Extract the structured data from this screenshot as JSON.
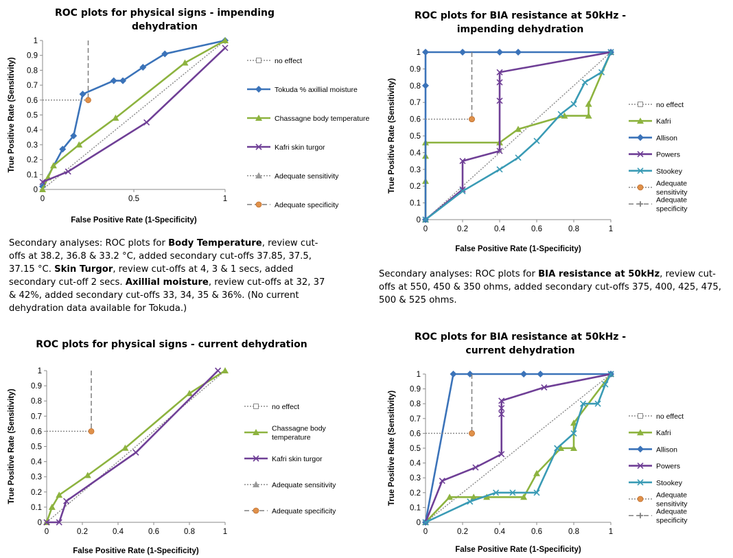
{
  "notes": {
    "physical": {
      "prefix": "Secondary analyses: ROC plots for ",
      "bold1": "Body Temperature",
      "text1": ", review cut-offs at 38.2, 36.8 & 33.2 °C, added secondary cut-offs 37.85, 37.5, 37.15 °C. ",
      "bold2": "Skin Turgor",
      "text2": ", review cut-offs at 4, 3 & 1 secs, added secondary cut-off 2 secs. ",
      "bold3": "Axillial moisture",
      "text3": ", review cut-offs at 32, 37 & 42%, added secondary cut-offs 33, 34, 35 & 36%. (No current dehydration data available for Tokuda.)"
    },
    "bia": {
      "prefix": "Secondary analyses: ROC plots for ",
      "bold1": "BIA resistance at 50kHz",
      "text1": ", review cut-offs at 550, 450 & 350 ohms, added secondary cut-offs 375, 400, 425, 475, 500 & 525 ohms."
    }
  },
  "chart_data": [
    {
      "type": "line",
      "title": "ROC plots for physical signs - impending dehydration",
      "xlabel": "False Positive Rate (1-Specificity)",
      "ylabel": "True Positive Rate (Sensitivity)",
      "xlim": [
        0,
        1
      ],
      "ylim": [
        0,
        1
      ],
      "x_ticks": [
        "0",
        "0.5",
        "1"
      ],
      "y_ticks": [
        "0",
        "0.1",
        "0.2",
        "0.3",
        "0.4",
        "0.5",
        "0.6",
        "0.7",
        "0.8",
        "0.9",
        "1"
      ],
      "grid": false,
      "legend_position": "right",
      "series": [
        {
          "name": "no effect",
          "color": "#8c8c8c",
          "style": "dotted",
          "marker": "square",
          "points": [
            [
              0,
              0
            ],
            [
              1,
              1
            ]
          ]
        },
        {
          "name": "Tokuda % axillial moisture",
          "color": "#3b73b9",
          "style": "solid",
          "marker": "diamond",
          "points": [
            [
              0,
              0.02
            ],
            [
              0.11,
              0.27
            ],
            [
              0.17,
              0.36
            ],
            [
              0.22,
              0.64
            ],
            [
              0.39,
              0.73
            ],
            [
              0.44,
              0.73
            ],
            [
              0.55,
              0.82
            ],
            [
              0.67,
              0.91
            ],
            [
              1,
              1
            ]
          ]
        },
        {
          "name": "Chassagne body temperature",
          "color": "#8db33f",
          "style": "solid",
          "marker": "triangle",
          "points": [
            [
              0,
              0
            ],
            [
              0.03,
              0.08
            ],
            [
              0.06,
              0.16
            ],
            [
              0.2,
              0.3
            ],
            [
              0.4,
              0.48
            ],
            [
              0.78,
              0.85
            ],
            [
              1,
              1
            ]
          ]
        },
        {
          "name": "Kafri skin turgor",
          "color": "#6f3f96",
          "style": "solid",
          "marker": "x",
          "points": [
            [
              0,
              0.05
            ],
            [
              0.14,
              0.12
            ],
            [
              0.57,
              0.45
            ],
            [
              1,
              0.95
            ]
          ]
        },
        {
          "name": "Adequate sensitivity",
          "color": "#8c8c8c",
          "style": "dotted",
          "marker": "triangle",
          "points": [
            [
              0,
              0.6
            ],
            [
              0.25,
              0.6
            ]
          ]
        },
        {
          "name": "Adequate specificity",
          "color": "#7f7f7f",
          "style": "dashed",
          "marker": "circle",
          "points": [
            [
              0.25,
              1
            ],
            [
              0.25,
              0.6
            ]
          ]
        }
      ]
    },
    {
      "type": "line",
      "title": "ROC plots for BIA resistance at 50kHz - impending dehydration",
      "xlabel": "False Positive Rate (1-Specificity)",
      "ylabel": "True Positive Rate (Sensitivity)",
      "xlim": [
        0,
        1
      ],
      "ylim": [
        0,
        1
      ],
      "x_ticks": [
        "0",
        "0.2",
        "0.4",
        "0.6",
        "0.8",
        "1"
      ],
      "y_ticks": [
        "0",
        "0.1",
        "0.2",
        "0.3",
        "0.4",
        "0.5",
        "0.6",
        "0.7",
        "0.8",
        "0.9",
        "1"
      ],
      "grid": false,
      "legend_position": "right",
      "series": [
        {
          "name": "no effect",
          "color": "#8c8c8c",
          "style": "dotted",
          "marker": "square",
          "points": [
            [
              0,
              0
            ],
            [
              1,
              1
            ]
          ]
        },
        {
          "name": "Kafri",
          "color": "#8db33f",
          "style": "solid",
          "marker": "triangle",
          "points": [
            [
              0,
              0
            ],
            [
              0,
              0.23
            ],
            [
              0,
              0.38
            ],
            [
              0,
              0.46
            ],
            [
              0.4,
              0.46
            ],
            [
              0.5,
              0.54
            ],
            [
              0.75,
              0.62
            ],
            [
              0.88,
              0.62
            ],
            [
              0.88,
              0.69
            ],
            [
              1,
              1
            ]
          ]
        },
        {
          "name": "Allison",
          "color": "#3b73b9",
          "style": "solid",
          "marker": "diamond",
          "points": [
            [
              0,
              0
            ],
            [
              0,
              0.8
            ],
            [
              0,
              1
            ],
            [
              0.2,
              1
            ],
            [
              0.4,
              1
            ],
            [
              0.5,
              1
            ],
            [
              1,
              1
            ]
          ]
        },
        {
          "name": "Powers",
          "color": "#6f3f96",
          "style": "solid",
          "marker": "x",
          "points": [
            [
              0,
              0
            ],
            [
              0.2,
              0.18
            ],
            [
              0.2,
              0.35
            ],
            [
              0.4,
              0.41
            ],
            [
              0.4,
              0.71
            ],
            [
              0.4,
              0.82
            ],
            [
              0.4,
              0.88
            ],
            [
              1,
              1
            ]
          ]
        },
        {
          "name": "Stookey",
          "color": "#3a9bb5",
          "style": "solid",
          "marker": "x",
          "points": [
            [
              0,
              0
            ],
            [
              0.2,
              0.17
            ],
            [
              0.4,
              0.3
            ],
            [
              0.5,
              0.37
            ],
            [
              0.6,
              0.47
            ],
            [
              0.73,
              0.63
            ],
            [
              0.8,
              0.69
            ],
            [
              0.86,
              0.82
            ],
            [
              0.95,
              0.88
            ],
            [
              1,
              1
            ]
          ]
        },
        {
          "name": "Adequate sensitivity",
          "color": "#8c8c8c",
          "style": "dotted",
          "marker": "circle",
          "points": [
            [
              0,
              0.6
            ],
            [
              0.25,
              0.6
            ]
          ]
        },
        {
          "name": "Adequate specificity",
          "color": "#7f7f7f",
          "style": "dashed",
          "marker": "plus",
          "points": [
            [
              0.25,
              1
            ],
            [
              0.25,
              0.6
            ]
          ]
        }
      ]
    },
    {
      "type": "line",
      "title": "ROC plots for physical signs - current dehydration",
      "xlabel": "False Positive Rate (1-Specificity)",
      "ylabel": "True Positive Rate (Sensitivity)",
      "xlim": [
        0,
        1
      ],
      "ylim": [
        0,
        1
      ],
      "x_ticks": [
        "0",
        "0.2",
        "0.4",
        "0.6",
        "0.8",
        "1"
      ],
      "y_ticks": [
        "0",
        "0.1",
        "0.2",
        "0.3",
        "0.4",
        "0.5",
        "0.6",
        "0.7",
        "0.8",
        "0.9",
        "1"
      ],
      "grid": false,
      "legend_position": "right",
      "series": [
        {
          "name": "no effect",
          "color": "#8c8c8c",
          "style": "dotted",
          "marker": "square",
          "points": [
            [
              0,
              0
            ],
            [
              1,
              1
            ]
          ]
        },
        {
          "name": "Chassagne body temperature",
          "color": "#8db33f",
          "style": "solid",
          "marker": "triangle",
          "points": [
            [
              0,
              0
            ],
            [
              0.03,
              0.1
            ],
            [
              0.07,
              0.18
            ],
            [
              0.23,
              0.31
            ],
            [
              0.44,
              0.49
            ],
            [
              0.8,
              0.85
            ],
            [
              1,
              1
            ]
          ]
        },
        {
          "name": "Kafri skin turgor",
          "color": "#6f3f96",
          "style": "solid",
          "marker": "x",
          "points": [
            [
              0,
              0
            ],
            [
              0.07,
              0
            ],
            [
              0.11,
              0.14
            ],
            [
              0.5,
              0.46
            ],
            [
              0.96,
              1
            ]
          ]
        },
        {
          "name": "Adequate sensitivity",
          "color": "#8c8c8c",
          "style": "dotted",
          "marker": "triangle",
          "points": [
            [
              0,
              0.6
            ],
            [
              0.25,
              0.6
            ]
          ]
        },
        {
          "name": "Adequate specificity",
          "color": "#7f7f7f",
          "style": "dashed",
          "marker": "circle",
          "points": [
            [
              0.25,
              1
            ],
            [
              0.25,
              0.6
            ]
          ]
        }
      ]
    },
    {
      "type": "line",
      "title": "ROC plots for BIA resistance at 50kHz - current dehydration",
      "xlabel": "False Positive Rate (1-Specificity)",
      "ylabel": "True Positive Rate (Sensitivity)",
      "xlim": [
        0,
        1
      ],
      "ylim": [
        0,
        1
      ],
      "x_ticks": [
        "0",
        "0.2",
        "0.4",
        "0.6",
        "0.8",
        "1"
      ],
      "y_ticks": [
        "0",
        "0.1",
        "0.2",
        "0.3",
        "0.4",
        "0.5",
        "0.6",
        "0.7",
        "0.8",
        "0.9",
        "1"
      ],
      "grid": false,
      "legend_position": "right",
      "series": [
        {
          "name": "no effect",
          "color": "#8c8c8c",
          "style": "dotted",
          "marker": "square",
          "points": [
            [
              0,
              0
            ],
            [
              1,
              1
            ]
          ]
        },
        {
          "name": "Kafri",
          "color": "#8db33f",
          "style": "solid",
          "marker": "triangle",
          "points": [
            [
              0,
              0
            ],
            [
              0.13,
              0.17
            ],
            [
              0.26,
              0.17
            ],
            [
              0.33,
              0.17
            ],
            [
              0.53,
              0.17
            ],
            [
              0.6,
              0.33
            ],
            [
              0.73,
              0.5
            ],
            [
              0.8,
              0.5
            ],
            [
              0.8,
              0.67
            ],
            [
              1,
              1
            ]
          ]
        },
        {
          "name": "Allison",
          "color": "#3b73b9",
          "style": "solid",
          "marker": "diamond",
          "points": [
            [
              0,
              0
            ],
            [
              0.15,
              1
            ],
            [
              0.24,
              1
            ],
            [
              0.53,
              1
            ],
            [
              0.62,
              1
            ],
            [
              1,
              1
            ]
          ]
        },
        {
          "name": "Powers",
          "color": "#6f3f96",
          "style": "solid",
          "marker": "x",
          "points": [
            [
              0,
              0
            ],
            [
              0.09,
              0.28
            ],
            [
              0.27,
              0.37
            ],
            [
              0.41,
              0.46
            ],
            [
              0.41,
              0.73
            ],
            [
              0.41,
              0.77
            ],
            [
              0.41,
              0.82
            ],
            [
              0.64,
              0.91
            ],
            [
              1,
              1
            ]
          ]
        },
        {
          "name": "Stookey",
          "color": "#3a9bb5",
          "style": "solid",
          "marker": "x",
          "points": [
            [
              0,
              0
            ],
            [
              0.24,
              0.14
            ],
            [
              0.38,
              0.2
            ],
            [
              0.47,
              0.2
            ],
            [
              0.6,
              0.2
            ],
            [
              0.71,
              0.5
            ],
            [
              0.8,
              0.6
            ],
            [
              0.85,
              0.8
            ],
            [
              0.93,
              0.8
            ],
            [
              0.97,
              0.93
            ],
            [
              1,
              1
            ]
          ]
        },
        {
          "name": "Adequate sensitivity",
          "color": "#8c8c8c",
          "style": "dotted",
          "marker": "circle",
          "points": [
            [
              0,
              0.6
            ],
            [
              0.25,
              0.6
            ]
          ]
        },
        {
          "name": "Adequate specificity",
          "color": "#7f7f7f",
          "style": "dashed",
          "marker": "plus",
          "points": [
            [
              0.25,
              1
            ],
            [
              0.25,
              0.6
            ]
          ]
        }
      ]
    }
  ]
}
